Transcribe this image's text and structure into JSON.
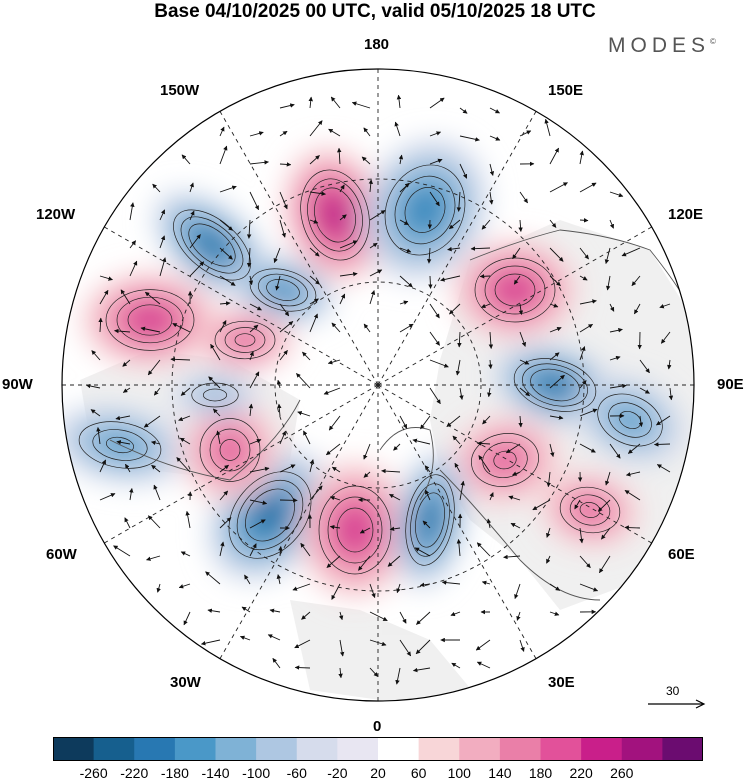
{
  "header": {
    "title": "Base 04/10/2025 00 UTC, valid 05/10/2025 18 UTC",
    "brand": "MODES",
    "brand_mark": "©"
  },
  "map": {
    "projection": "north polar stereographic",
    "longitude_labels": {
      "top": "180",
      "top_right": "150E",
      "upper_right": "120E",
      "right": "90E",
      "lower_right": "60E",
      "bottom_right": "30E",
      "bottom": "0",
      "bottom_left": "30W",
      "lower_left": "60W",
      "left": "90W",
      "upper_left": "120W",
      "top_left": "150W"
    },
    "reference_vector": "30"
  },
  "colorbar": {
    "ticks": [
      "-260",
      "-220",
      "-180",
      "-140",
      "-100",
      "-60",
      "-20",
      "20",
      "60",
      "100",
      "140",
      "180",
      "220",
      "260"
    ],
    "colors": [
      "#0d3a5c",
      "#165f8e",
      "#2878b2",
      "#4a98c8",
      "#7fb2d6",
      "#aec7e2",
      "#d6dcec",
      "#e8e6f2",
      "#ffffff",
      "#f8d6d8",
      "#f2adc0",
      "#ea7fa8",
      "#e2519a",
      "#c91f8a",
      "#a2127e",
      "#6b0c70"
    ]
  },
  "anomalies": [
    {
      "sign": "negative",
      "amplitude": 250
    },
    {
      "sign": "negative",
      "amplitude": 200
    },
    {
      "sign": "positive",
      "amplitude": 230
    },
    {
      "sign": "negative",
      "amplitude": 190
    },
    {
      "sign": "positive",
      "amplitude": 180
    },
    {
      "sign": "negative",
      "amplitude": 220
    },
    {
      "sign": "negative",
      "amplitude": 160
    },
    {
      "sign": "positive",
      "amplitude": 160
    },
    {
      "sign": "positive",
      "amplitude": 150
    },
    {
      "sign": "negative",
      "amplitude": 170
    },
    {
      "sign": "negative",
      "amplitude": 240
    },
    {
      "sign": "positive",
      "amplitude": 210
    },
    {
      "sign": "negative",
      "amplitude": 240
    },
    {
      "sign": "positive",
      "amplitude": 170
    },
    {
      "sign": "negative",
      "amplitude": 120
    },
    {
      "sign": "positive",
      "amplitude": 190
    },
    {
      "sign": "positive",
      "amplitude": 150
    }
  ]
}
